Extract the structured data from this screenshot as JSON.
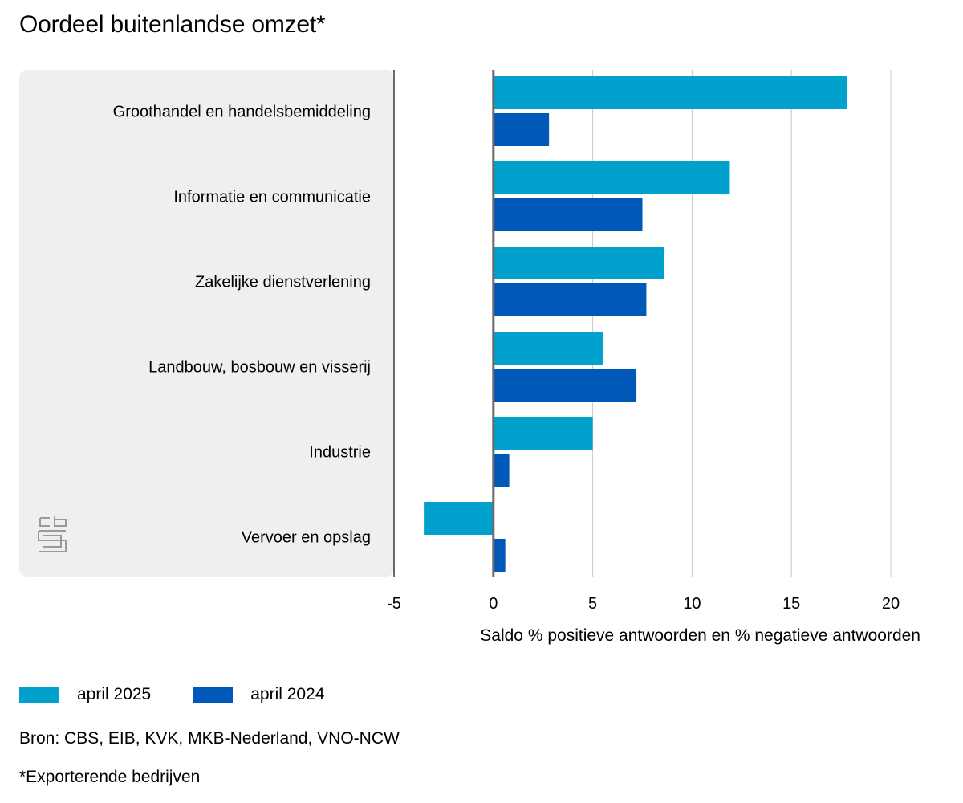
{
  "chart_data": {
    "type": "bar",
    "orientation": "horizontal",
    "title": "Oordeel buitenlandse omzet*",
    "categories": [
      "Groothandel en handelsbemiddeling",
      "Informatie en communicatie",
      "Zakelijke dienstverlening",
      "Landbouw, bosbouw en visserij",
      "Industrie",
      "Vervoer en opslag"
    ],
    "series": [
      {
        "name": "april 2025",
        "color": "#00a1cd",
        "values": [
          17.8,
          11.9,
          8.6,
          5.5,
          5.0,
          -3.5
        ]
      },
      {
        "name": "april 2024",
        "color": "#0058b8",
        "values": [
          2.8,
          7.5,
          7.7,
          7.2,
          0.8,
          0.6
        ]
      }
    ],
    "xlabel": "Saldo % positieve antwoorden en % negatieve antwoorden",
    "ylabel": "",
    "xlim": [
      -5,
      20
    ],
    "xticks": [
      -5,
      0,
      5,
      10,
      15,
      20
    ],
    "grid": true,
    "legend_position": "bottom-left"
  },
  "footer": {
    "source": "Bron: CBS, EIB, KVK, MKB-Nederland, VNO-NCW",
    "footnote": "*Exporterende bedrijven"
  },
  "logo": {
    "icon": "cbs-logo-icon",
    "color": "#9a9a9a"
  },
  "colors": {
    "panel_background": "#efefef",
    "gridline": "#c8c8c8",
    "zero_line": "#6a6a6a"
  }
}
